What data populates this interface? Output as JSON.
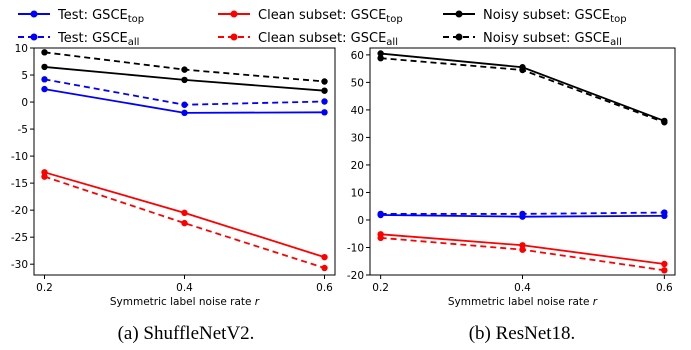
{
  "legend": [
    {
      "label": "Test: GSCE",
      "sub": "top",
      "color": "#0000ff",
      "dashed": false
    },
    {
      "label": "Clean subset: GSCE",
      "sub": "top",
      "color": "#ff0000",
      "dashed": false
    },
    {
      "label": "Noisy subset: GSCE",
      "sub": "top",
      "color": "#000000",
      "dashed": false
    },
    {
      "label": "Test: GSCE",
      "sub": "all",
      "color": "#0000ff",
      "dashed": true
    },
    {
      "label": "Clean subset: GSCE",
      "sub": "all",
      "color": "#ff0000",
      "dashed": true
    },
    {
      "label": "Noisy subset: GSCE",
      "sub": "all",
      "color": "#000000",
      "dashed": true
    }
  ],
  "chart_data": [
    {
      "type": "line",
      "caption": "(a) ShuffleNetV2.",
      "xlabel": "Symmetric label noise rate r",
      "ylabel": "",
      "x": [
        0.2,
        0.4,
        0.6
      ],
      "xticks": [
        "0.2",
        "0.4",
        "0.6"
      ],
      "xlim": [
        0.185,
        0.615
      ],
      "ylim": [
        -32,
        10
      ],
      "yticks": [
        10,
        5,
        0,
        -5,
        -10,
        -15,
        -20,
        -25,
        -30
      ],
      "ytick_labels": [
        "10",
        "5",
        "0",
        "-5",
        "-10",
        "-15",
        "-20",
        "-25",
        "-30"
      ],
      "grid": false,
      "series": [
        {
          "name": "Test: GSCE_top",
          "color": "#0000ff",
          "dashed": false,
          "values": [
            2.4,
            -2.0,
            -1.9
          ]
        },
        {
          "name": "Test: GSCE_all",
          "color": "#0000ff",
          "dashed": true,
          "values": [
            4.2,
            -0.5,
            0.1
          ]
        },
        {
          "name": "Clean subset: GSCE_top",
          "color": "#ff0000",
          "dashed": false,
          "values": [
            -13.0,
            -20.5,
            -28.7
          ]
        },
        {
          "name": "Clean subset: GSCE_all",
          "color": "#ff0000",
          "dashed": true,
          "values": [
            -13.8,
            -22.4,
            -30.7
          ]
        },
        {
          "name": "Noisy subset: GSCE_top",
          "color": "#000000",
          "dashed": false,
          "values": [
            6.5,
            4.1,
            2.1
          ]
        },
        {
          "name": "Noisy subset: GSCE_all",
          "color": "#000000",
          "dashed": true,
          "values": [
            9.2,
            6.0,
            3.8
          ]
        }
      ]
    },
    {
      "type": "line",
      "caption": "(b) ResNet18.",
      "xlabel": "Symmetric label noise rate r",
      "ylabel": "",
      "x": [
        0.2,
        0.4,
        0.6
      ],
      "xticks": [
        "0.2",
        "0.4",
        "0.6"
      ],
      "xlim": [
        0.185,
        0.615
      ],
      "ylim": [
        -20,
        62.5
      ],
      "yticks": [
        60,
        50,
        40,
        30,
        20,
        10,
        0,
        -10,
        -20
      ],
      "ytick_labels": [
        "60",
        "50",
        "40",
        "30",
        "20",
        "10",
        "0",
        "-10",
        "-20"
      ],
      "grid": false,
      "series": [
        {
          "name": "Test: GSCE_top",
          "color": "#0000ff",
          "dashed": false,
          "values": [
            1.8,
            1.2,
            1.5
          ]
        },
        {
          "name": "Test: GSCE_all",
          "color": "#0000ff",
          "dashed": true,
          "values": [
            2.2,
            2.2,
            2.7
          ]
        },
        {
          "name": "Clean subset: GSCE_top",
          "color": "#ff0000",
          "dashed": false,
          "values": [
            -5.2,
            -9.2,
            -16.0
          ]
        },
        {
          "name": "Clean subset: GSCE_all",
          "color": "#ff0000",
          "dashed": true,
          "values": [
            -6.5,
            -10.8,
            -18.3
          ]
        },
        {
          "name": "Noisy subset: GSCE_top",
          "color": "#000000",
          "dashed": false,
          "values": [
            60.5,
            55.5,
            36.0
          ]
        },
        {
          "name": "Noisy subset: GSCE_all",
          "color": "#000000",
          "dashed": true,
          "values": [
            58.8,
            54.5,
            35.5
          ]
        }
      ]
    }
  ]
}
